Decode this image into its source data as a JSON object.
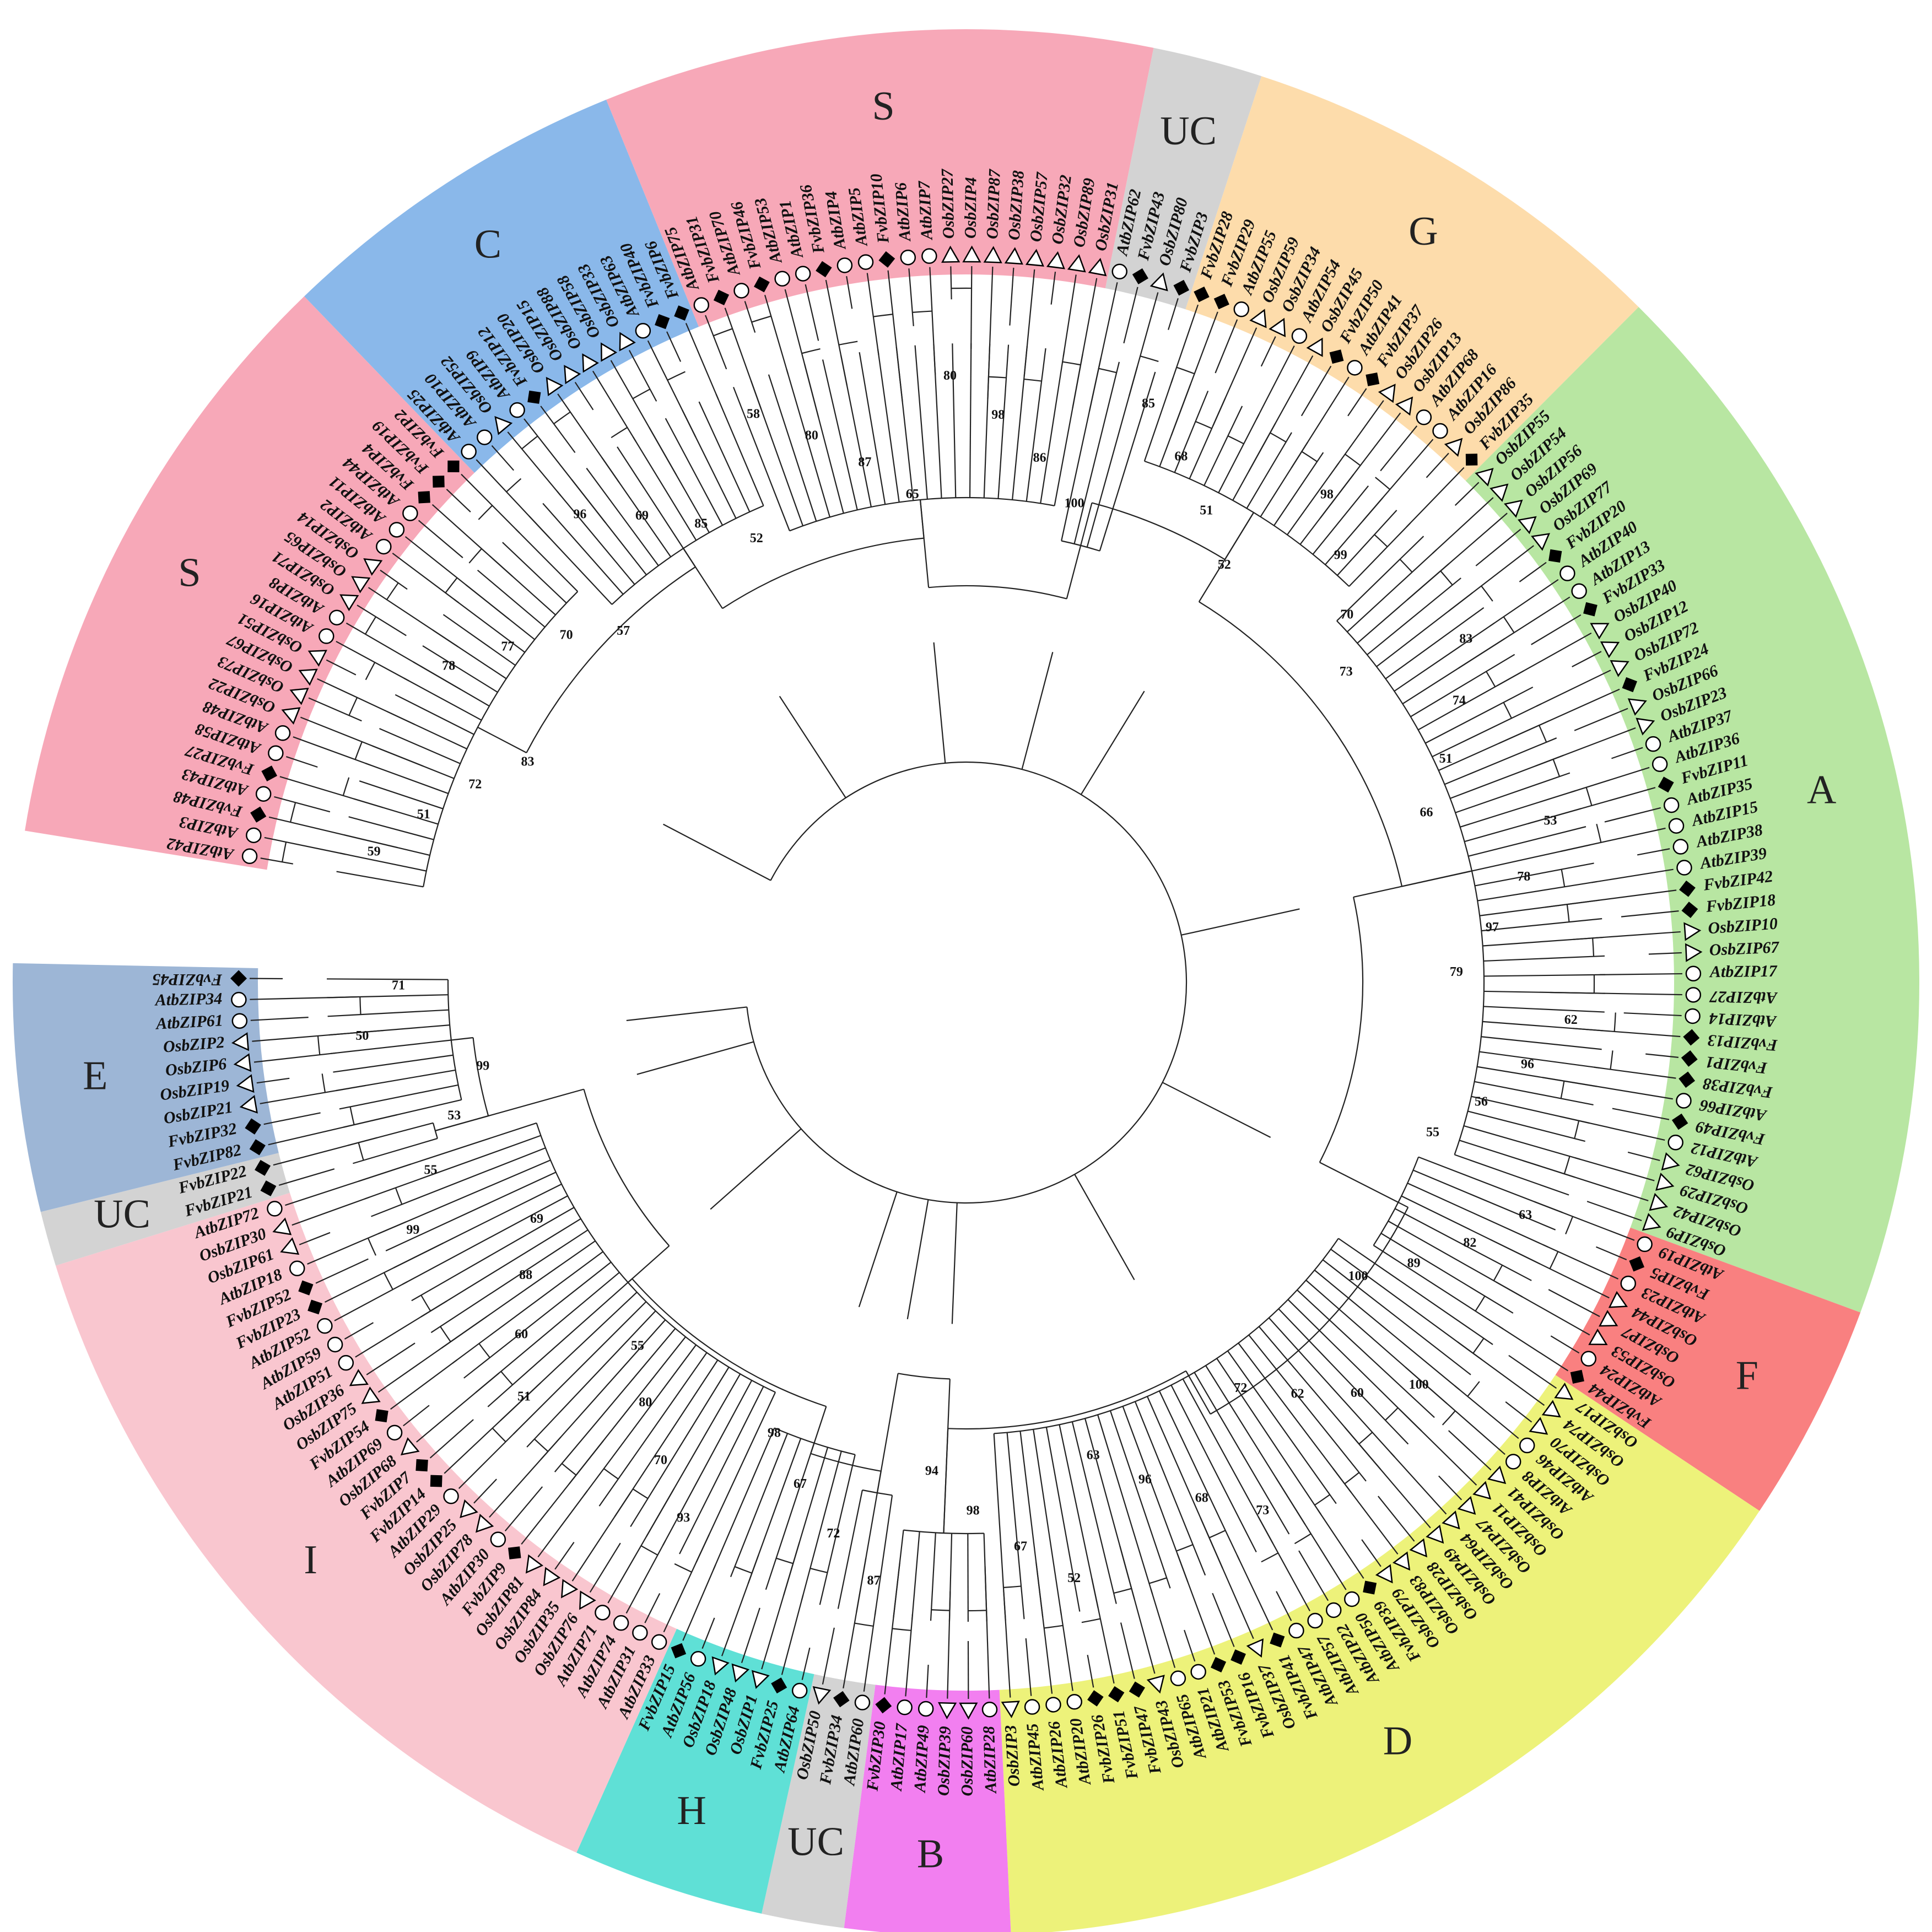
{
  "legend_markers": {
    "At": "circle",
    "Fv": "diamond",
    "Os": "triangle"
  },
  "clades": [
    {
      "label": "S",
      "color": "#f7a8b8",
      "members": [
        "AtbZIP42",
        "AtbZIP3",
        "FvbZIP48",
        "AtbZIP43",
        "FvbZIP27",
        "AtbZIP58",
        "AtbZIP48",
        "OsbZIP22",
        "OsbZIP73",
        "OsbZIP67",
        "OsbZIP51",
        "AtbZIP16",
        "AtbZIP8",
        "OsbZIP71",
        "OsbZIP65",
        "OsbZIP14",
        "AtbZIP2",
        "AtbZIP11",
        "AtbZIP44",
        "FvbZIP4",
        "FvbZIP19",
        "FvbZIP2"
      ]
    },
    {
      "label": "C",
      "color": "#8ab8ea",
      "members": [
        "AtbZIP25",
        "AtbZIP10",
        "OsbZIP52",
        "AtbZIP9",
        "FvbZIP12",
        "OsbZIP20",
        "OsbZIP15",
        "OsbZIP88",
        "OsbZIP58",
        "OsbZIP33",
        "AtbZIP63",
        "FvbZIP40",
        "FvbZIP6"
      ]
    },
    {
      "label": "S",
      "color": "#f7a8b8",
      "members": [
        "AtbZIP75",
        "FvbZIP31",
        "AtbZIP70",
        "FvbZIP46",
        "AtbZIP53",
        "AtbZIP1",
        "FvbZIP36",
        "AtbZIP4",
        "AtbZIP5",
        "FvbZIP10",
        "AtbZIP6",
        "AtbZIP7",
        "OsbZIP27",
        "OsbZIP4",
        "OsbZIP87",
        "OsbZIP38",
        "OsbZIP57",
        "OsbZIP32",
        "OsbZIP89",
        "OsbZIP31"
      ]
    },
    {
      "label": "UC",
      "color": "#d3d3d3",
      "members": [
        "AtbZIP62",
        "FvbZIP43",
        "OsbZIP80",
        "FvbZIP3"
      ]
    },
    {
      "label": "G",
      "color": "#fddcab",
      "members": [
        "FvbZIP28",
        "FvbZIP29",
        "AtbZIP55",
        "OsbZIP59",
        "OsbZIP34",
        "AtbZIP54",
        "OsbZIP45",
        "FvbZIP50",
        "AtbZIP41",
        "FvbZIP37",
        "OsbZIP26",
        "OsbZIP13",
        "AtbZIP68",
        "AtbZIP16",
        "OsbZIP86",
        "FvbZIP35"
      ]
    },
    {
      "label": "A",
      "color": "#b8e6a2",
      "members": [
        "OsbZIP55",
        "OsbZIP54",
        "OsbZIP56",
        "OsbZIP69",
        "OsbZIP77",
        "FvbZIP20",
        "AtbZIP40",
        "AtbZIP13",
        "FvbZIP33",
        "OsbZIP40",
        "OsbZIP12",
        "OsbZIP72",
        "FvbZIP24",
        "OsbZIP66",
        "OsbZIP23",
        "AtbZIP37",
        "AtbZIP36",
        "FvbZIP11",
        "AtbZIP35",
        "AtbZIP15",
        "AtbZIP38",
        "AtbZIP39",
        "FvbZIP42",
        "FvbZIP18",
        "OsbZIP10",
        "OsbZIP67",
        "AtbZIP17",
        "AtbZIP27",
        "AtbZIP14",
        "FvbZIP13",
        "FvbZIP1",
        "FvbZIP38",
        "AtbZIP66",
        "FvbZIP49",
        "AtbZIP12",
        "OsbZIP62",
        "OsbZIP29",
        "OsbZIP42",
        "OsbZIP9"
      ]
    },
    {
      "label": "F",
      "color": "#f98080",
      "members": [
        "AtbZIP19",
        "FvbZIP5",
        "AtbZIP23",
        "OsbZIP44",
        "OsbZIP7",
        "OsbZIP53",
        "AtbZIP24",
        "FvbZIP44"
      ]
    },
    {
      "label": "D",
      "color": "#edf27a",
      "members": [
        "OsbZIP17",
        "OsbZIP74",
        "OsbZIP70",
        "AtbZIP46",
        "AtbZIP8",
        "OsbZIP41",
        "OsbZIP11",
        "OsbZIP47",
        "OsbZIP64",
        "OsbZIP49",
        "OsbZIP28",
        "OsbZIP83",
        "OsbZIP79",
        "FvbZIP39",
        "AtbZIP50",
        "AtbZIP22",
        "AtbZIP57",
        "AtbZIP47",
        "FvbZIP41",
        "OsbZIP37",
        "FvbZIP16",
        "FvbZIP53",
        "AtbZIP21",
        "AtbZIP65",
        "OsbZIP43",
        "FvbZIP47",
        "FvbZIP51",
        "FvbZIP26",
        "AtbZIP20",
        "AtbZIP26",
        "AtbZIP45",
        "OsbZIP3"
      ]
    },
    {
      "label": "B",
      "color": "#f27ff0",
      "members": [
        "AtbZIP28",
        "OsbZIP60",
        "OsbZIP39",
        "AtbZIP49",
        "AtbZIP17",
        "FvbZIP30"
      ]
    },
    {
      "label": "UC",
      "color": "#d3d3d3",
      "members": [
        "AtbZIP60",
        "FvbZIP34",
        "OsbZIP50"
      ]
    },
    {
      "label": "H",
      "color": "#5fe0d6",
      "members": [
        "AtbZIP64",
        "FvbZIP25",
        "OsbZIP1",
        "OsbZIP48",
        "OsbZIP18",
        "AtbZIP56",
        "FvbZIP15"
      ]
    },
    {
      "label": "I",
      "color": "#f9c6cf",
      "members": [
        "AtbZIP33",
        "AtbZIP31",
        "AtbZIP74",
        "AtbZIP71",
        "OsbZIP76",
        "OsbZIP35",
        "OsbZIP84",
        "OsbZIP81",
        "FvbZIP9",
        "AtbZIP30",
        "OsbZIP78",
        "OsbZIP25",
        "AtbZIP29",
        "FvbZIP14",
        "FvbZIP7",
        "OsbZIP68",
        "AtbZIP69",
        "FvbZIP54",
        "OsbZIP75",
        "OsbZIP36",
        "AtbZIP51",
        "AtbZIP59",
        "AtbZIP52",
        "FvbZIP23",
        "FvbZIP52",
        "AtbZIP18",
        "OsbZIP61",
        "OsbZIP30",
        "AtbZIP72"
      ]
    },
    {
      "label": "UC",
      "color": "#d3d3d3",
      "members": [
        "FvbZIP21",
        "FvbZIP22"
      ]
    },
    {
      "label": "E",
      "color": "#9db6d6",
      "members": [
        "FvbZIP82",
        "FvbZIP32",
        "OsbZIP21",
        "OsbZIP19",
        "OsbZIP6",
        "OsbZIP2",
        "AtbZIP61",
        "AtbZIP34",
        "FvbZIP45"
      ]
    }
  ],
  "bootstrap_values": [
    "59",
    "51",
    "72",
    "83",
    "78",
    "77",
    "70",
    "57",
    "96",
    "69",
    "85",
    "52",
    "58",
    "80",
    "87",
    "65",
    "80",
    "98",
    "86",
    "100",
    "85",
    "68",
    "51",
    "52",
    "98",
    "99",
    "70",
    "73",
    "83",
    "74",
    "51",
    "66",
    "53",
    "78",
    "97",
    "79",
    "62",
    "96",
    "56",
    "55",
    "63",
    "82",
    "89",
    "100",
    "100",
    "60",
    "62",
    "72",
    "73",
    "68",
    "96",
    "63",
    "52",
    "67",
    "98",
    "94",
    "87",
    "72",
    "67",
    "98",
    "93",
    "70",
    "80",
    "55",
    "51",
    "60",
    "88",
    "69",
    "99",
    "55",
    "53",
    "99",
    "50",
    "71"
  ]
}
